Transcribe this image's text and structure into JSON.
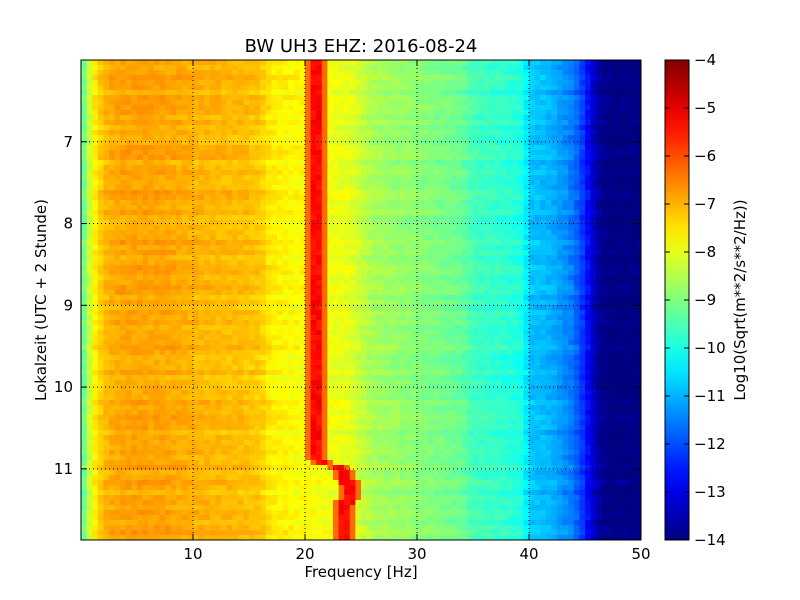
{
  "chart_data": {
    "type": "heatmap",
    "title": "BW UH3 EHZ: 2016-08-24",
    "xlabel": "Frequency [Hz]",
    "ylabel": "Lokalzeit (UTC + 2 Stunde)",
    "xlim": [
      0,
      50
    ],
    "ylim": [
      11.87,
      6.0
    ],
    "x_ticks": [
      10,
      20,
      30,
      40,
      50
    ],
    "y_ticks": [
      7,
      8,
      9,
      10,
      11
    ],
    "grid": true,
    "colormap": "jet",
    "colorbar": {
      "label": "Log10(Sqrt(m**2/s**2/Hz))",
      "range": [
        -14,
        -4
      ],
      "ticks": [
        -4,
        -5,
        -6,
        -7,
        -8,
        -9,
        -10,
        -11,
        -12,
        -13,
        -14
      ]
    },
    "spectral_profile": {
      "frequency_hz": [
        0,
        0.5,
        1,
        2,
        3,
        5,
        8,
        10,
        14,
        16,
        17,
        20,
        24,
        26,
        30,
        34,
        35,
        38,
        39.5,
        40,
        42,
        43,
        44,
        45,
        46,
        47,
        50
      ],
      "level": [
        -9.5,
        -8.8,
        -7.8,
        -7.1,
        -6.9,
        -6.85,
        -6.9,
        -7.0,
        -7.1,
        -7.2,
        -7.6,
        -7.8,
        -8.0,
        -8.6,
        -8.9,
        -9.2,
        -9.6,
        -9.8,
        -10.0,
        -10.8,
        -11.0,
        -11.3,
        -11.6,
        -12.4,
        -13.6,
        -14.0,
        -14.0
      ]
    },
    "narrowband_line": {
      "level": -5.3,
      "track": [
        {
          "time": 6.0,
          "freq": 21.0
        },
        {
          "time": 6.9,
          "freq": 21.0
        },
        {
          "time": 7.5,
          "freq": 20.9
        },
        {
          "time": 9.0,
          "freq": 20.8
        },
        {
          "time": 9.5,
          "freq": 21.1
        },
        {
          "time": 10.2,
          "freq": 21.0
        },
        {
          "time": 10.9,
          "freq": 20.8
        },
        {
          "time": 11.0,
          "freq": 23.5
        },
        {
          "time": 11.3,
          "freq": 24.0
        },
        {
          "time": 11.6,
          "freq": 23.3
        },
        {
          "time": 11.87,
          "freq": 23.4
        }
      ]
    }
  }
}
